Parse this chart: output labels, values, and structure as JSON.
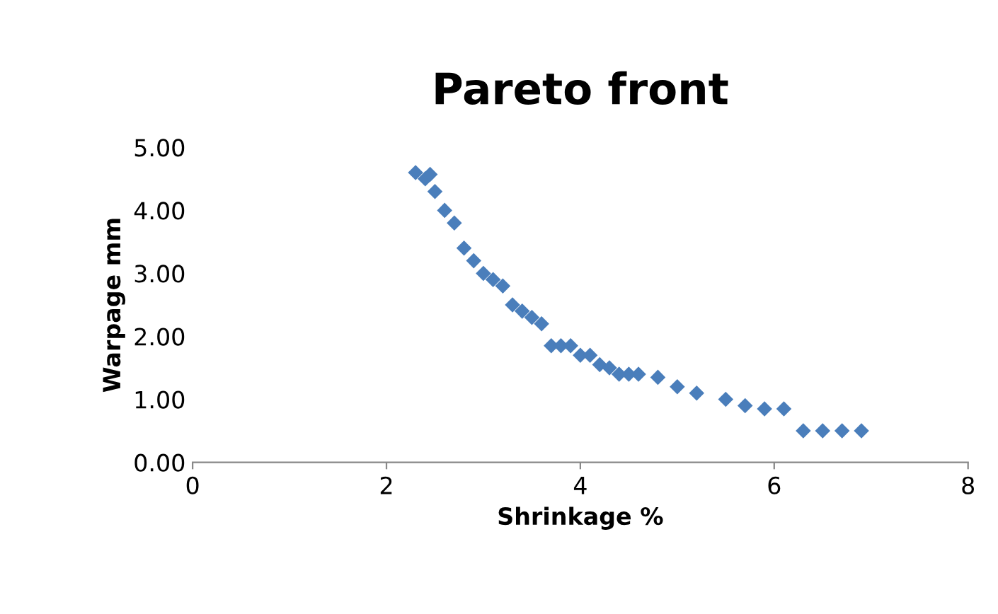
{
  "chart_data": {
    "type": "scatter",
    "title": "Pareto front",
    "xlabel": "Shrinkage %",
    "ylabel": "Warpage mm",
    "x": [
      2.3,
      2.4,
      2.45,
      2.5,
      2.6,
      2.7,
      2.8,
      2.9,
      3.0,
      3.1,
      3.2,
      3.3,
      3.4,
      3.5,
      3.6,
      3.7,
      3.8,
      3.9,
      4.0,
      4.1,
      4.2,
      4.3,
      4.4,
      4.5,
      4.6,
      4.8,
      5.0,
      5.2,
      5.5,
      5.7,
      5.9,
      6.1,
      6.3,
      6.5,
      6.7,
      6.9
    ],
    "series": [
      {
        "color": "#4a7ebb",
        "values": [
          4.6,
          4.5,
          4.57,
          4.3,
          4.0,
          3.8,
          3.4,
          3.2,
          3.0,
          2.9,
          2.8,
          2.5,
          2.4,
          2.3,
          2.2,
          1.85,
          1.85,
          1.85,
          1.7,
          1.7,
          1.55,
          1.5,
          1.4,
          1.4,
          1.4,
          1.35,
          1.2,
          1.1,
          1.0,
          0.9,
          0.85,
          0.85,
          0.5,
          0.5,
          0.5,
          0.5
        ]
      }
    ],
    "xlim": [
      0,
      8
    ],
    "xticks": [
      0,
      2,
      4,
      6,
      8
    ],
    "ylim": [
      0,
      5
    ],
    "yticks": [
      {
        "value": 0,
        "label": "0.00"
      },
      {
        "value": 1,
        "label": "1.00"
      },
      {
        "value": 2,
        "label": "2.00"
      },
      {
        "value": 3,
        "label": "3.00"
      },
      {
        "value": 4,
        "label": "4.00"
      },
      {
        "value": 5,
        "label": "5.00"
      }
    ],
    "marker": "diamond",
    "grid": false
  }
}
